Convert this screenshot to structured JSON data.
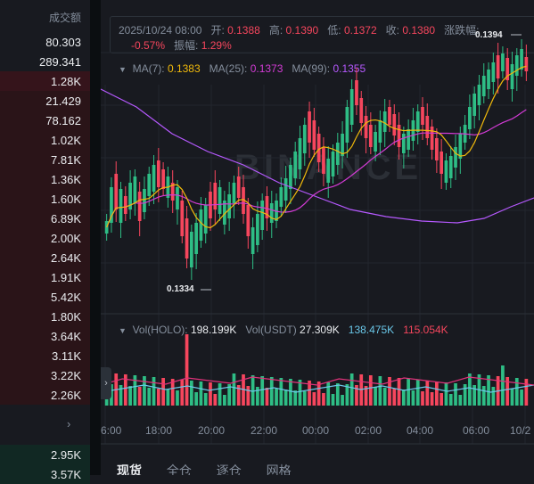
{
  "orderbook": {
    "header": "成交额",
    "rows": [
      {
        "value": "80.303",
        "side": "none",
        "depth": 0.0
      },
      {
        "value": "289.341",
        "side": "none",
        "depth": 0.0
      },
      {
        "value": "1.28K",
        "side": "sell",
        "depth": 1.0
      },
      {
        "value": "21.429",
        "side": "sell",
        "depth": 1.0
      },
      {
        "value": "78.162",
        "side": "sell",
        "depth": 1.0
      },
      {
        "value": "1.02K",
        "side": "sell",
        "depth": 1.0
      },
      {
        "value": "7.81K",
        "side": "sell",
        "depth": 1.0
      },
      {
        "value": "1.36K",
        "side": "sell",
        "depth": 1.0
      },
      {
        "value": "1.60K",
        "side": "sell",
        "depth": 1.0
      },
      {
        "value": "6.89K",
        "side": "sell",
        "depth": 1.0
      },
      {
        "value": "2.00K",
        "side": "sell",
        "depth": 1.0
      },
      {
        "value": "2.64K",
        "side": "sell",
        "depth": 1.0
      },
      {
        "value": "1.91K",
        "side": "sell",
        "depth": 1.0
      },
      {
        "value": "5.42K",
        "side": "sell",
        "depth": 1.0
      },
      {
        "value": "1.80K",
        "side": "sell",
        "depth": 1.0
      },
      {
        "value": "3.64K",
        "side": "sell",
        "depth": 1.0
      },
      {
        "value": "3.11K",
        "side": "sell",
        "depth": 1.0
      },
      {
        "value": "3.22K",
        "side": "sell",
        "depth": 1.0
      },
      {
        "value": "2.26K",
        "side": "sell",
        "depth": 1.0
      }
    ],
    "more_icon": "chevron-right-icon",
    "bid_rows": [
      {
        "value": "2.95K",
        "depth": 1.0
      },
      {
        "value": "3.57K",
        "depth": 1.0
      }
    ]
  },
  "ohlc": {
    "datetime": "2025/10/24 08:00",
    "open_label": "开:",
    "open": "0.1388",
    "high_label": "高:",
    "high": "0.1390",
    "low_label": "低:",
    "low": "0.1372",
    "close_label": "收:",
    "close": "0.1380",
    "change_label": "涨跌幅:",
    "change": "-0.57%",
    "amplitude_label": "振幅:",
    "amplitude": "1.29%"
  },
  "ma": {
    "ma7_label": "MA(7):",
    "ma7": "0.1383",
    "ma25_label": "MA(25):",
    "ma25": "0.1373",
    "ma99_label": "MA(99):",
    "ma99": "0.1355"
  },
  "watermark": "BINANCE",
  "annotations": {
    "high": "0.1394",
    "low": "0.1334"
  },
  "volume": {
    "vol_label": "Vol(HOLO):",
    "vol": "198.199K",
    "usdt_label": "Vol(USDT)",
    "usdt": "27.309K",
    "ma1": "138.475K",
    "ma2": "115.054K"
  },
  "xaxis": [
    "6:00",
    "18:00",
    "20:00",
    "22:00",
    "00:00",
    "02:00",
    "04:00",
    "06:00",
    "10/2"
  ],
  "tabs": [
    "现货",
    "全仓",
    "逐仓",
    "网格"
  ],
  "colors": {
    "up": "#2ebd85",
    "down": "#f6465d",
    "ma7": "#f0b90b",
    "ma25": "#d33bd5",
    "ma99": "#b659ff",
    "background": "#181a20"
  }
}
